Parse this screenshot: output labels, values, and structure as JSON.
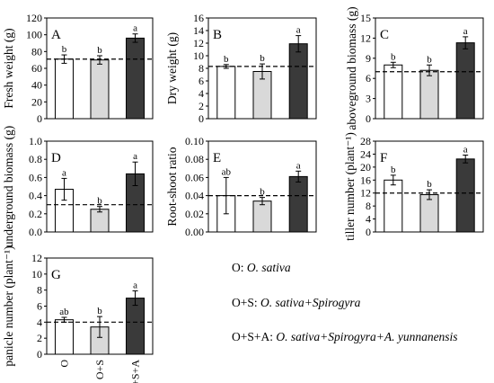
{
  "colors": {
    "O": "#ffffff",
    "O+S": "#d9d9d9",
    "O+S+A": "#3a3a3a",
    "axis": "#000000"
  },
  "chart_data": [
    {
      "type": "bar",
      "panel": "A",
      "ylabel": "Fresh weight (g)",
      "categories": [
        "O",
        "O+S",
        "O+S+A"
      ],
      "values": [
        71,
        70,
        96
      ],
      "errors": [
        5,
        5,
        5
      ],
      "letters": [
        "b",
        "b",
        "a"
      ],
      "reference_line": 71,
      "ylim": [
        0,
        120
      ],
      "yticks": [
        0,
        20,
        40,
        60,
        80,
        100,
        120
      ],
      "ytick_labels": [
        "0",
        "20",
        "40",
        "60",
        "80",
        "100",
        "120"
      ],
      "show_xticklabels": false
    },
    {
      "type": "bar",
      "panel": "B",
      "ylabel": "Dry weight (g)",
      "categories": [
        "O",
        "O+S",
        "O+S+A"
      ],
      "values": [
        8.3,
        7.5,
        11.9
      ],
      "errors": [
        0.3,
        1.2,
        1.3
      ],
      "letters": [
        "b",
        "b",
        "a"
      ],
      "reference_line": 8.3,
      "ylim": [
        0,
        16
      ],
      "yticks": [
        0,
        2,
        4,
        6,
        8,
        10,
        12,
        14,
        16
      ],
      "ytick_labels": [
        "0",
        "2",
        "4",
        "6",
        "8",
        "10",
        "12",
        "14",
        "16"
      ],
      "show_xticklabels": false
    },
    {
      "type": "bar",
      "panel": "C",
      "ylabel": "aboveground biomass (g)",
      "categories": [
        "O",
        "O+S",
        "O+S+A"
      ],
      "values": [
        8,
        7.2,
        11.3
      ],
      "errors": [
        0.4,
        0.8,
        0.9
      ],
      "letters": [
        "b",
        "b",
        "a"
      ],
      "reference_line": 7,
      "ylim": [
        0,
        15
      ],
      "yticks": [
        0,
        3,
        6,
        9,
        12,
        15
      ],
      "ytick_labels": [
        "0",
        "3",
        "6",
        "9",
        "12",
        "15"
      ],
      "show_xticklabels": false
    },
    {
      "type": "bar",
      "panel": "D",
      "ylabel": "underground biomass (g)",
      "categories": [
        "O",
        "O+S",
        "O+S+A"
      ],
      "values": [
        0.47,
        0.25,
        0.64
      ],
      "errors": [
        0.12,
        0.03,
        0.13
      ],
      "letters": [
        "a",
        "b",
        "a"
      ],
      "reference_line": 0.3,
      "ylim": [
        0,
        1.0
      ],
      "yticks": [
        0,
        0.2,
        0.4,
        0.6,
        0.8,
        1.0
      ],
      "ytick_labels": [
        "0.0",
        "0.2",
        "0.4",
        "0.6",
        "0.8",
        "1.0"
      ],
      "show_xticklabels": false
    },
    {
      "type": "bar",
      "panel": "E",
      "ylabel": "Root-shoot ratio",
      "categories": [
        "O",
        "O+S",
        "O+S+A"
      ],
      "values": [
        0.04,
        0.034,
        0.061
      ],
      "errors": [
        0.02,
        0.004,
        0.006
      ],
      "letters": [
        "ab",
        "b",
        "a"
      ],
      "reference_line": 0.04,
      "ylim": [
        0,
        0.1
      ],
      "yticks": [
        0,
        0.02,
        0.04,
        0.06,
        0.08,
        0.1
      ],
      "ytick_labels": [
        "0.00",
        "0.02",
        "0.04",
        "0.06",
        "0.08",
        "0.10"
      ],
      "show_xticklabels": false
    },
    {
      "type": "bar",
      "panel": "F",
      "ylabel": "tiller number (plant⁻¹)",
      "categories": [
        "O",
        "O+S",
        "O+S+A"
      ],
      "values": [
        16,
        11.5,
        22.5
      ],
      "errors": [
        1.5,
        1.5,
        1.2
      ],
      "letters": [
        "b",
        "b",
        "a"
      ],
      "reference_line": 12,
      "ylim": [
        0,
        28
      ],
      "yticks": [
        0,
        4,
        8,
        12,
        16,
        20,
        24,
        28
      ],
      "ytick_labels": [
        "0",
        "4",
        "8",
        "12",
        "16",
        "20",
        "24",
        "28"
      ],
      "show_xticklabels": false
    },
    {
      "type": "bar",
      "panel": "G",
      "ylabel": "panicle number (plant⁻¹)",
      "categories": [
        "O",
        "O+S",
        "O+S+A"
      ],
      "values": [
        4.3,
        3.4,
        7
      ],
      "errors": [
        0.3,
        1.3,
        0.9
      ],
      "letters": [
        "ab",
        "b",
        "a"
      ],
      "reference_line": 4,
      "ylim": [
        0,
        12
      ],
      "yticks": [
        0,
        2,
        4,
        6,
        8,
        10,
        12
      ],
      "ytick_labels": [
        "0",
        "2",
        "4",
        "6",
        "8",
        "10",
        "12"
      ],
      "show_xticklabels": true
    }
  ],
  "legend": {
    "o_prefix": "O: ",
    "o_name": "O. sativa",
    "os_prefix": "O+S: ",
    "os_name": "O. sativa+Spirogyra",
    "osa_prefix": "O+S+A: ",
    "osa_name": "O. sativa+Spirogyra+A. yunnanensis"
  }
}
